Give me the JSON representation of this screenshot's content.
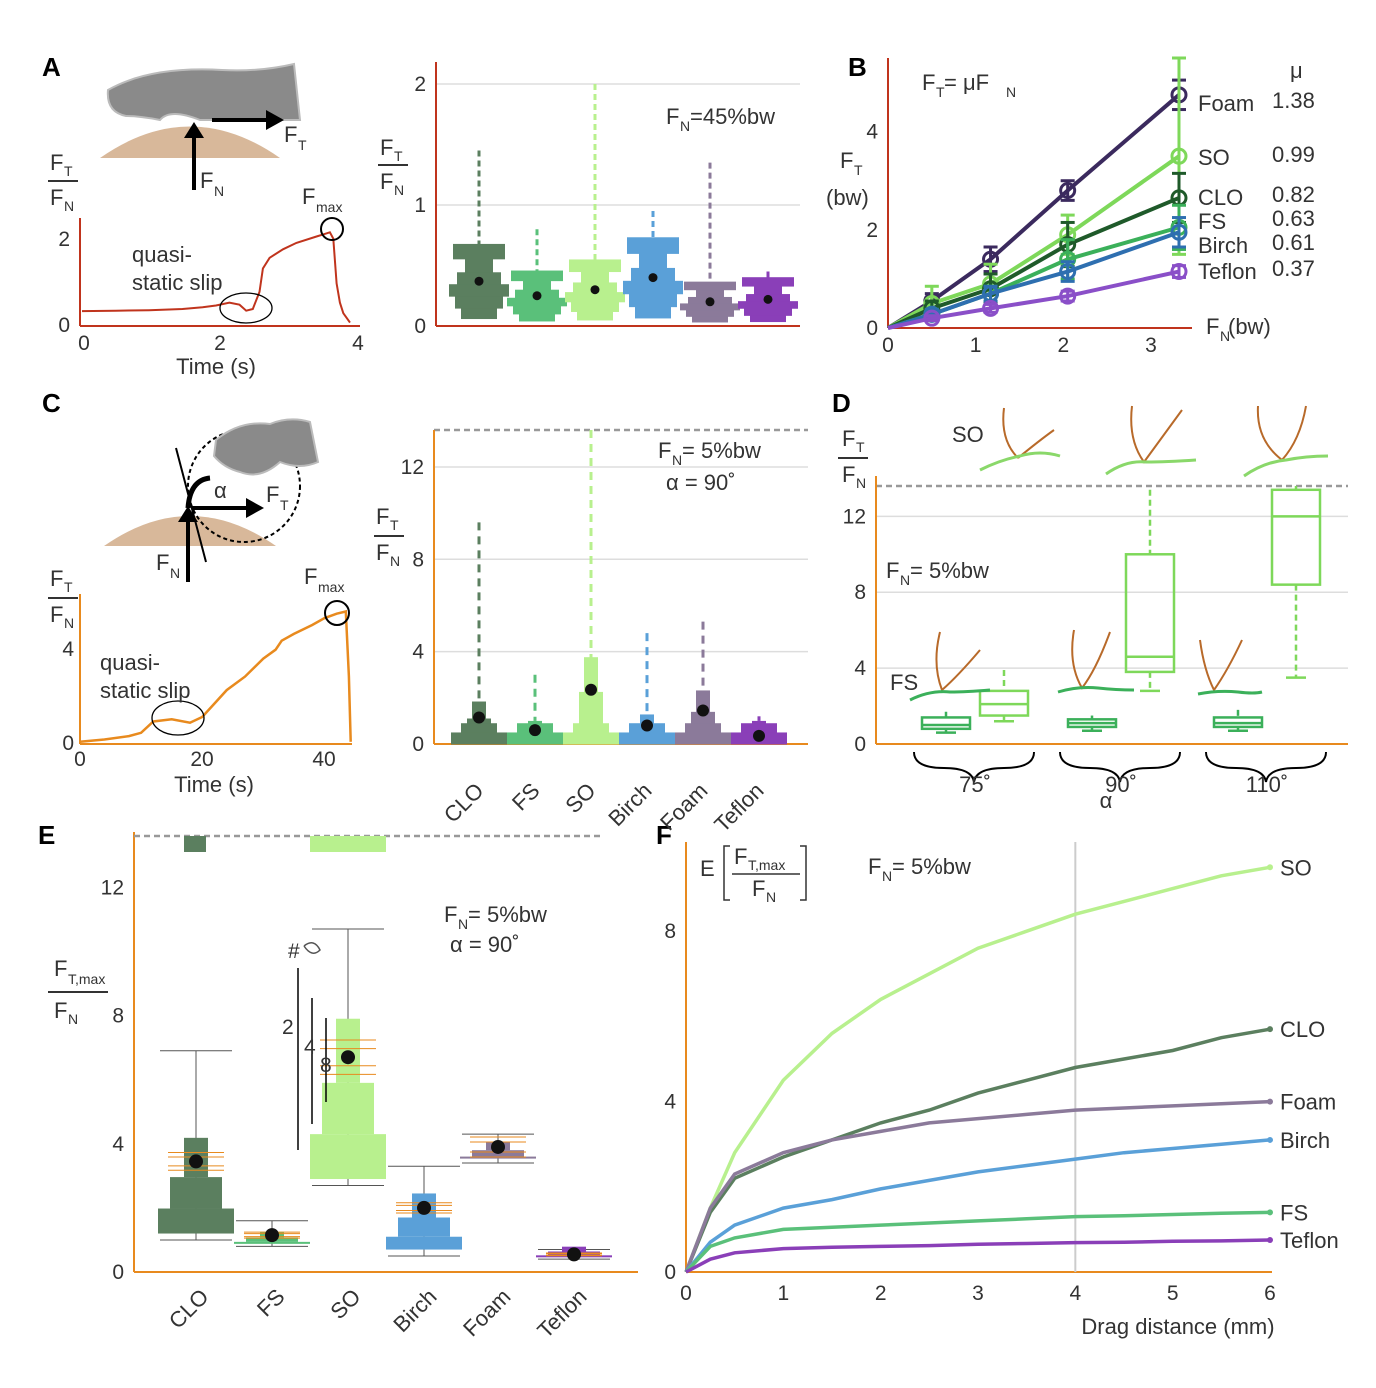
{
  "panel_labels": [
    "A",
    "B",
    "C",
    "D",
    "E",
    "F"
  ],
  "colors": {
    "CLO": "#5b7f5f",
    "FS": "#5ac07a",
    "SO": "#b8f08e",
    "Birch": "#5aa0d8",
    "Foam": "#8b7a9a",
    "Teflon": "#8a3fb8",
    "red": "#c0341d",
    "orange": "#e88a1e",
    "skin": "#d8b89a",
    "gray": "#8a8a8a",
    "so_light": "#7ed85a",
    "clo_dark": "#1f5a2a",
    "foam_dark": "#3b2a5e",
    "birch_dark": "#2e6fb0",
    "fs_b": "#3bb05a",
    "teflon_b": "#8a4fc8"
  },
  "text": {
    "ft": "F",
    "ft_sub": "T",
    "fn_sub": "N",
    "fn": "F",
    "ftmax_sub": "T,max",
    "fmax_sub": "max",
    "quasi1": "quasi-",
    "static_slip": "static slip",
    "static_slip2": "slip",
    "time_s": "Time (s)",
    "alpha": "α",
    "fn45": "F",
    "fn45_rest": "=45%bw",
    "fn5_rest": "= 5%bw",
    "alpha90": "α = 90˚",
    "law_lhs": "F",
    "law_mid": " = μF",
    "mu_head": "μ",
    "bw": "(bw)",
    "fn_bw": " (bw)",
    "so": "SO",
    "fs": "FS",
    "alpha_label": "α",
    "hash": "#",
    "ext2": "2",
    "ext4": "4",
    "ext8": "8",
    "e_label": "E",
    "drag": "Drag distance (mm)"
  },
  "materials": [
    "CLO",
    "FS",
    "SO",
    "Birch",
    "Foam",
    "Teflon"
  ],
  "chart_data": [
    {
      "panel": "A",
      "type": "line",
      "title": "",
      "xlabel": "Time (s)",
      "ylabel": "FT/FN",
      "xlim": [
        0,
        4
      ],
      "ylim": [
        0,
        2.3
      ],
      "x_ticks": [
        0,
        2,
        4
      ],
      "y_ticks": [
        0,
        2
      ],
      "x": [
        0,
        0.5,
        1.0,
        1.5,
        1.8,
        2.0,
        2.2,
        2.35,
        2.45,
        2.55,
        2.65,
        2.7,
        2.8,
        3.0,
        3.2,
        3.5,
        3.6,
        3.7,
        3.75,
        3.8,
        3.85,
        3.9,
        4.0
      ],
      "y": [
        0.35,
        0.36,
        0.37,
        0.4,
        0.44,
        0.48,
        0.55,
        0.5,
        0.36,
        0.4,
        0.8,
        1.35,
        1.6,
        1.8,
        1.95,
        2.1,
        2.15,
        2.2,
        2.05,
        1.0,
        0.55,
        0.3,
        0.08
      ],
      "annotations": [
        "quasi-static slip",
        "Fmax"
      ]
    },
    {
      "panel": "A-right",
      "type": "box",
      "title": "FN=45%bw",
      "ylabel": "FT/FN",
      "ylim": [
        0,
        2
      ],
      "y_ticks": [
        0,
        1,
        2
      ],
      "categories": [
        "CLO",
        "FS",
        "SO",
        "Birch",
        "Foam",
        "Teflon"
      ],
      "means": [
        0.37,
        0.25,
        0.3,
        0.4,
        0.2,
        0.22
      ],
      "upper_whisker": [
        1.45,
        0.8,
        2.0,
        0.95,
        1.35,
        0.45
      ]
    },
    {
      "panel": "B",
      "type": "line",
      "title": "FT = μFN",
      "xlabel": "FN (bw)",
      "ylabel": "FT (bw)",
      "xlim": [
        0,
        3.4
      ],
      "ylim": [
        0,
        5.5
      ],
      "x_ticks": [
        0,
        1,
        2,
        3
      ],
      "y_ticks": [
        0,
        2,
        4
      ],
      "series": [
        {
          "name": "Foam",
          "mu": 1.38,
          "x": [
            0.5,
            1.17,
            2.05,
            3.32
          ],
          "y": [
            0.55,
            1.4,
            2.8,
            4.75
          ],
          "err": [
            0.15,
            0.25,
            0.2,
            0.3
          ]
        },
        {
          "name": "SO",
          "mu": 0.99,
          "x": [
            0.5,
            1.17,
            2.05,
            3.32
          ],
          "y": [
            0.5,
            0.9,
            1.9,
            3.5
          ],
          "err": [
            0.35,
            0.4,
            0.4,
            2.0
          ]
        },
        {
          "name": "CLO",
          "mu": 0.82,
          "x": [
            0.5,
            1.17,
            2.05,
            3.32
          ],
          "y": [
            0.4,
            0.8,
            1.7,
            2.65
          ],
          "err": [
            0.15,
            0.3,
            0.45,
            0.5
          ]
        },
        {
          "name": "FS",
          "mu": 0.63,
          "x": [
            0.5,
            1.17,
            2.05,
            3.32
          ],
          "y": [
            0.28,
            0.7,
            1.4,
            2.05
          ],
          "err": [
            0.1,
            0.15,
            0.4,
            0.45
          ]
        },
        {
          "name": "Birch",
          "mu": 0.61,
          "x": [
            0.5,
            1.17,
            2.05,
            3.32
          ],
          "y": [
            0.28,
            0.7,
            1.15,
            1.95
          ],
          "err": [
            0.1,
            0.15,
            0.2,
            0.3
          ]
        },
        {
          "name": "Teflon",
          "mu": 0.37,
          "x": [
            0.5,
            1.17,
            2.05,
            3.32
          ],
          "y": [
            0.2,
            0.4,
            0.65,
            1.15
          ],
          "err": [
            0.05,
            0.08,
            0.1,
            0.12
          ]
        }
      ]
    },
    {
      "panel": "C",
      "type": "line",
      "title": "",
      "xlabel": "Time (s)",
      "ylabel": "FT/FN",
      "xlim": [
        0,
        45
      ],
      "ylim": [
        0,
        6.5
      ],
      "x_ticks": [
        0,
        20,
        40
      ],
      "y_ticks": [
        0,
        4
      ],
      "x": [
        0,
        4,
        8,
        10,
        12,
        15,
        18,
        20,
        22,
        24,
        27,
        30,
        32,
        33,
        35,
        38,
        40,
        42,
        43.5,
        44,
        44.3
      ],
      "y": [
        0.1,
        0.2,
        0.35,
        0.5,
        1.0,
        1.1,
        0.95,
        1.2,
        1.8,
        2.4,
        3.0,
        3.8,
        4.2,
        4.6,
        4.9,
        5.3,
        5.6,
        5.8,
        5.9,
        3.0,
        0.1
      ],
      "annotations": [
        "quasi-static slip",
        "Fmax"
      ]
    },
    {
      "panel": "C-right",
      "type": "box",
      "title": "FN = 5%bw, α = 90˚",
      "ylabel": "FT/FN",
      "ylim": [
        0,
        13.6
      ],
      "y_ticks": [
        0,
        4,
        8,
        12
      ],
      "categories": [
        "CLO",
        "FS",
        "SO",
        "Birch",
        "Foam",
        "Teflon"
      ],
      "means": [
        1.15,
        0.6,
        2.35,
        0.8,
        1.45,
        0.35
      ],
      "upper_whisker": [
        9.6,
        3.0,
        13.6,
        4.8,
        5.3,
        1.2
      ]
    },
    {
      "panel": "D",
      "type": "box",
      "title": "FN = 5%bw",
      "xlabel": "α",
      "ylabel": "FT/FN",
      "ylim": [
        0,
        13.6
      ],
      "y_ticks": [
        0,
        4,
        8,
        12
      ],
      "categories": [
        "75˚",
        "90˚",
        "110˚"
      ],
      "series": [
        {
          "name": "FS",
          "q1": [
            0.8,
            0.9,
            0.9
          ],
          "median": [
            1.0,
            1.1,
            1.1
          ],
          "q3": [
            1.4,
            1.3,
            1.4
          ],
          "lo": [
            0.6,
            0.7,
            0.7
          ],
          "hi": [
            1.7,
            1.5,
            1.8
          ]
        },
        {
          "name": "SO",
          "q1": [
            1.5,
            3.8,
            8.4
          ],
          "median": [
            2.1,
            4.6,
            12.0
          ],
          "q3": [
            2.8,
            10.0,
            13.4
          ],
          "lo": [
            1.2,
            2.8,
            3.5
          ],
          "hi": [
            3.9,
            13.4,
            13.6
          ]
        }
      ]
    },
    {
      "panel": "E",
      "type": "box",
      "title": "FN = 5%bw, α = 90˚",
      "ylabel": "FT,max/FN",
      "ylim": [
        0,
        13.6
      ],
      "y_ticks": [
        0,
        4,
        8,
        12
      ],
      "categories": [
        "CLO",
        "FS",
        "SO",
        "Birch",
        "Foam",
        "Teflon"
      ],
      "means": [
        3.45,
        1.15,
        6.7,
        2.0,
        3.9,
        0.55
      ],
      "whisker_lo": [
        1.0,
        0.8,
        2.7,
        0.5,
        3.4,
        0.4
      ],
      "whisker_hi": [
        6.9,
        1.6,
        10.7,
        3.3,
        4.3,
        0.7
      ],
      "annotations": [
        "#",
        "2",
        "4",
        "8"
      ]
    },
    {
      "panel": "F",
      "type": "line",
      "title": "FN = 5%bw",
      "xlabel": "Drag distance (mm)",
      "ylabel": "E[FT,max/FN]",
      "xlim": [
        0,
        6
      ],
      "ylim": [
        0,
        10
      ],
      "x_ticks": [
        0,
        1,
        2,
        3,
        4,
        5,
        6
      ],
      "y_ticks": [
        0,
        4,
        8
      ],
      "x": [
        0,
        0.25,
        0.5,
        1,
        1.5,
        2,
        2.5,
        3,
        3.5,
        4,
        4.5,
        5,
        5.5,
        6
      ],
      "series": [
        {
          "name": "SO",
          "y": [
            0,
            1.5,
            2.8,
            4.5,
            5.6,
            6.4,
            7.0,
            7.6,
            8.0,
            8.4,
            8.7,
            9.0,
            9.3,
            9.5
          ]
        },
        {
          "name": "CLO",
          "y": [
            0,
            1.4,
            2.2,
            2.7,
            3.1,
            3.5,
            3.8,
            4.2,
            4.5,
            4.8,
            5.0,
            5.2,
            5.5,
            5.7
          ]
        },
        {
          "name": "Foam",
          "y": [
            0,
            1.5,
            2.3,
            2.8,
            3.1,
            3.3,
            3.5,
            3.6,
            3.7,
            3.8,
            3.85,
            3.9,
            3.95,
            4.0
          ]
        },
        {
          "name": "Birch",
          "y": [
            0,
            0.7,
            1.1,
            1.5,
            1.7,
            1.95,
            2.15,
            2.35,
            2.5,
            2.65,
            2.8,
            2.9,
            3.0,
            3.1
          ]
        },
        {
          "name": "FS",
          "y": [
            0,
            0.6,
            0.8,
            1.0,
            1.05,
            1.1,
            1.15,
            1.2,
            1.25,
            1.3,
            1.32,
            1.35,
            1.38,
            1.4
          ]
        },
        {
          "name": "Teflon",
          "y": [
            0,
            0.3,
            0.45,
            0.55,
            0.58,
            0.6,
            0.62,
            0.65,
            0.67,
            0.69,
            0.7,
            0.72,
            0.73,
            0.75
          ]
        }
      ],
      "vline_x": 4
    }
  ]
}
